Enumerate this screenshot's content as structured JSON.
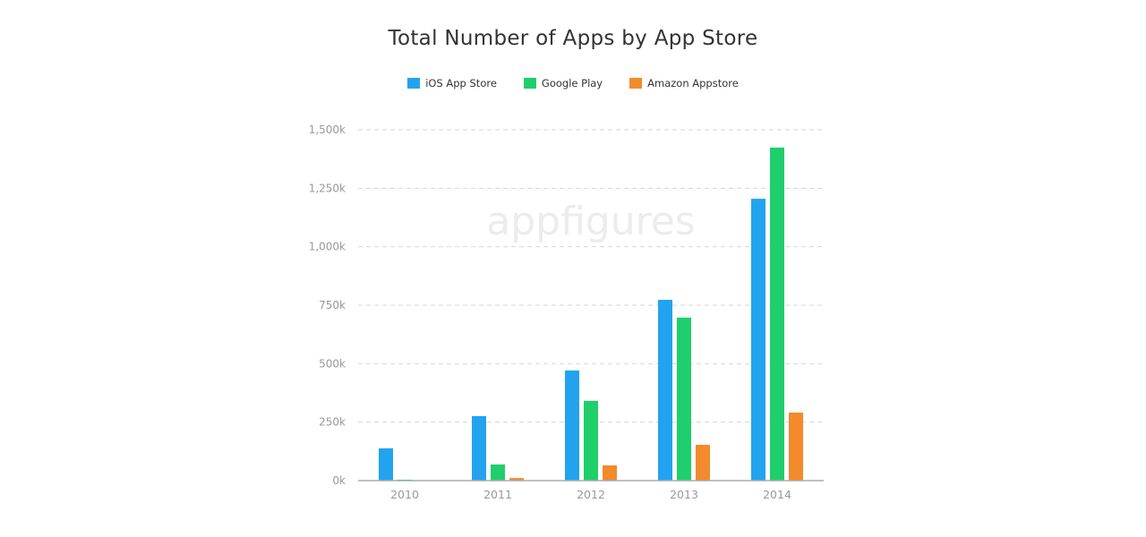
{
  "chart_data": {
    "type": "bar",
    "title": "Total Number of Apps by App Store",
    "categories": [
      "2010",
      "2011",
      "2012",
      "2013",
      "2014"
    ],
    "series": [
      {
        "name": "iOS App Store",
        "color": "#22a3ef",
        "values": [
          138,
          276,
          471,
          773,
          1205
        ]
      },
      {
        "name": "Google Play",
        "color": "#1fcf6b",
        "values": [
          4,
          69,
          341,
          697,
          1424
        ]
      },
      {
        "name": "Amazon Appstore",
        "color": "#f38a2c",
        "values": [
          0,
          11,
          65,
          153,
          291
        ]
      }
    ],
    "ylim": [
      0,
      1500
    ],
    "yticks": [
      0,
      250,
      500,
      750,
      1000,
      1250,
      1500
    ],
    "ytick_labels": [
      "0k",
      "250k",
      "500k",
      "750k",
      "1,000k",
      "1,250k",
      "1,500k"
    ],
    "unit": "thousands of apps",
    "grid": true,
    "legend_placement": "top",
    "watermark": "appfigures"
  }
}
